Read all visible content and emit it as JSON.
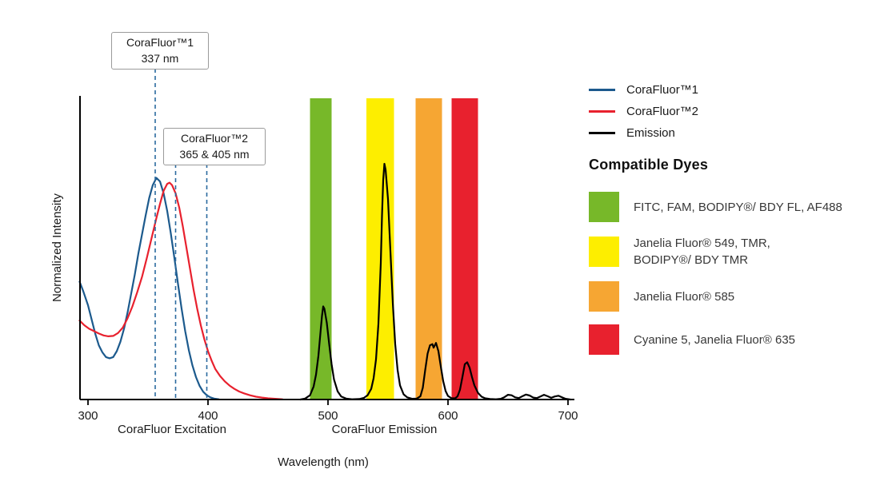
{
  "chart_data": {
    "type": "line",
    "title": "",
    "xlabel": "Wavelength (nm)",
    "ylabel": "Normalized Intensity",
    "x_ticks": [
      300,
      400,
      500,
      600,
      700
    ],
    "x_range": [
      293,
      704
    ],
    "y_range": [
      0,
      1.05
    ],
    "grid": false,
    "legend_position": "right",
    "axis_section_labels": [
      {
        "text": "CoraFluor Excitation",
        "center_nm": 370
      },
      {
        "text": "CoraFluor Emission",
        "center_nm": 547
      }
    ],
    "bands": [
      {
        "color": "#77b829",
        "from_nm": 485,
        "to_nm": 503
      },
      {
        "color": "#fdee00",
        "from_nm": 532,
        "to_nm": 555
      },
      {
        "color": "#f6a633",
        "from_nm": 573,
        "to_nm": 595
      },
      {
        "color": "#e8212e",
        "from_nm": 603,
        "to_nm": 625
      }
    ],
    "annotation_line_color": "#2b6a9f",
    "annotations": [
      {
        "label_line1": "CoraFluor™1",
        "label_line2": "337 nm",
        "lines_nm": [
          356
        ]
      },
      {
        "label_line1": "CoraFluor™2",
        "label_line2": "365 & 405 nm",
        "lines_nm": [
          373,
          399
        ]
      }
    ],
    "series": [
      {
        "name": "CoraFluor™1",
        "color": "#1c5a8d",
        "points": [
          [
            293,
            0.5
          ],
          [
            296,
            0.46
          ],
          [
            300,
            0.4
          ],
          [
            303,
            0.34
          ],
          [
            306,
            0.28
          ],
          [
            309,
            0.23
          ],
          [
            312,
            0.2
          ],
          [
            315,
            0.18
          ],
          [
            318,
            0.175
          ],
          [
            321,
            0.18
          ],
          [
            324,
            0.205
          ],
          [
            327,
            0.245
          ],
          [
            330,
            0.3
          ],
          [
            333,
            0.37
          ],
          [
            336,
            0.45
          ],
          [
            339,
            0.53
          ],
          [
            342,
            0.62
          ],
          [
            345,
            0.7
          ],
          [
            348,
            0.78
          ],
          [
            351,
            0.855
          ],
          [
            354,
            0.91
          ],
          [
            357,
            0.94
          ],
          [
            360,
            0.925
          ],
          [
            363,
            0.875
          ],
          [
            366,
            0.8
          ],
          [
            369,
            0.705
          ],
          [
            372,
            0.6
          ],
          [
            375,
            0.49
          ],
          [
            378,
            0.385
          ],
          [
            381,
            0.29
          ],
          [
            384,
            0.21
          ],
          [
            387,
            0.145
          ],
          [
            390,
            0.095
          ],
          [
            393,
            0.058
          ],
          [
            396,
            0.033
          ],
          [
            399,
            0.018
          ],
          [
            402,
            0.009
          ],
          [
            405,
            0.004
          ],
          [
            409,
            0.001
          ]
        ]
      },
      {
        "name": "CoraFluor™2",
        "color": "#e8212e",
        "points": [
          [
            293,
            0.335
          ],
          [
            297,
            0.315
          ],
          [
            301,
            0.3
          ],
          [
            305,
            0.29
          ],
          [
            309,
            0.28
          ],
          [
            313,
            0.272
          ],
          [
            317,
            0.268
          ],
          [
            321,
            0.27
          ],
          [
            325,
            0.282
          ],
          [
            329,
            0.305
          ],
          [
            333,
            0.345
          ],
          [
            337,
            0.395
          ],
          [
            341,
            0.455
          ],
          [
            345,
            0.52
          ],
          [
            349,
            0.6
          ],
          [
            353,
            0.685
          ],
          [
            357,
            0.77
          ],
          [
            360,
            0.83
          ],
          [
            363,
            0.885
          ],
          [
            366,
            0.915
          ],
          [
            368,
            0.92
          ],
          [
            370,
            0.91
          ],
          [
            373,
            0.875
          ],
          [
            376,
            0.815
          ],
          [
            379,
            0.735
          ],
          [
            382,
            0.645
          ],
          [
            385,
            0.555
          ],
          [
            388,
            0.465
          ],
          [
            391,
            0.385
          ],
          [
            394,
            0.315
          ],
          [
            397,
            0.255
          ],
          [
            400,
            0.205
          ],
          [
            403,
            0.165
          ],
          [
            406,
            0.13
          ],
          [
            410,
            0.1
          ],
          [
            414,
            0.077
          ],
          [
            418,
            0.059
          ],
          [
            422,
            0.045
          ],
          [
            426,
            0.034
          ],
          [
            430,
            0.026
          ],
          [
            435,
            0.018
          ],
          [
            440,
            0.012
          ],
          [
            445,
            0.008
          ],
          [
            450,
            0.005
          ],
          [
            456,
            0.003
          ],
          [
            462,
            0.001
          ]
        ]
      },
      {
        "name": "Emission",
        "color": "#000000",
        "points": [
          [
            477,
            0.0
          ],
          [
            481,
            0.004
          ],
          [
            485,
            0.018
          ],
          [
            488,
            0.055
          ],
          [
            490,
            0.105
          ],
          [
            492,
            0.185
          ],
          [
            494,
            0.3
          ],
          [
            495,
            0.355
          ],
          [
            496,
            0.395
          ],
          [
            497,
            0.385
          ],
          [
            499,
            0.325
          ],
          [
            501,
            0.235
          ],
          [
            503,
            0.15
          ],
          [
            505,
            0.085
          ],
          [
            508,
            0.035
          ],
          [
            511,
            0.013
          ],
          [
            515,
            0.004
          ],
          [
            520,
            0.001
          ],
          [
            526,
            0.002
          ],
          [
            530,
            0.007
          ],
          [
            533,
            0.018
          ],
          [
            536,
            0.045
          ],
          [
            538,
            0.09
          ],
          [
            540,
            0.17
          ],
          [
            542,
            0.32
          ],
          [
            544,
            0.58
          ],
          [
            545,
            0.78
          ],
          [
            546,
            0.93
          ],
          [
            547,
            1.0
          ],
          [
            548,
            0.975
          ],
          [
            550,
            0.85
          ],
          [
            552,
            0.63
          ],
          [
            554,
            0.41
          ],
          [
            556,
            0.235
          ],
          [
            558,
            0.125
          ],
          [
            560,
            0.06
          ],
          [
            563,
            0.022
          ],
          [
            566,
            0.009
          ],
          [
            570,
            0.003
          ],
          [
            574,
            0.004
          ],
          [
            577,
            0.014
          ],
          [
            579,
            0.05
          ],
          [
            581,
            0.125
          ],
          [
            583,
            0.195
          ],
          [
            585,
            0.23
          ],
          [
            587,
            0.235
          ],
          [
            588,
            0.22
          ],
          [
            590,
            0.24
          ],
          [
            592,
            0.205
          ],
          [
            594,
            0.14
          ],
          [
            596,
            0.078
          ],
          [
            598,
            0.036
          ],
          [
            600,
            0.015
          ],
          [
            603,
            0.005
          ],
          [
            606,
            0.005
          ],
          [
            608,
            0.014
          ],
          [
            610,
            0.042
          ],
          [
            612,
            0.095
          ],
          [
            614,
            0.15
          ],
          [
            616,
            0.158
          ],
          [
            618,
            0.135
          ],
          [
            620,
            0.095
          ],
          [
            622,
            0.06
          ],
          [
            625,
            0.028
          ],
          [
            628,
            0.012
          ],
          [
            631,
            0.005
          ],
          [
            635,
            0.002
          ],
          [
            640,
            0.001
          ],
          [
            644,
            0.003
          ],
          [
            647,
            0.01
          ],
          [
            650,
            0.02
          ],
          [
            653,
            0.018
          ],
          [
            656,
            0.009
          ],
          [
            659,
            0.006
          ],
          [
            662,
            0.014
          ],
          [
            665,
            0.021
          ],
          [
            668,
            0.017
          ],
          [
            671,
            0.008
          ],
          [
            674,
            0.006
          ],
          [
            677,
            0.013
          ],
          [
            680,
            0.02
          ],
          [
            683,
            0.014
          ],
          [
            686,
            0.007
          ],
          [
            689,
            0.013
          ],
          [
            692,
            0.016
          ],
          [
            695,
            0.009
          ],
          [
            698,
            0.003
          ],
          [
            702,
            0.0
          ]
        ]
      }
    ]
  },
  "legend": {
    "entries": [
      {
        "label": "CoraFluor™1",
        "color": "#1c5a8d"
      },
      {
        "label": "CoraFluor™2",
        "color": "#e8212e"
      },
      {
        "label": "Emission",
        "color": "#000000"
      }
    ],
    "dyes_heading": "Compatible Dyes",
    "dyes": [
      {
        "color": "#77b829",
        "label": "FITC, FAM, BODIPY®/ BDY FL, AF488"
      },
      {
        "color": "#fdee00",
        "label": "Janelia Fluor® 549, TMR,\nBODIPY®/ BDY TMR"
      },
      {
        "color": "#f6a633",
        "label": "Janelia Fluor® 585"
      },
      {
        "color": "#e8212e",
        "label": "Cyanine 5, Janelia Fluor® 635"
      }
    ]
  }
}
